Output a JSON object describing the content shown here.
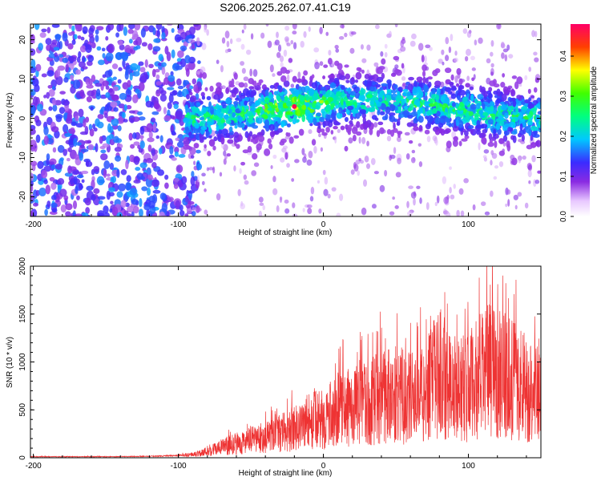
{
  "title": "S206.2025.262.07.41.C19",
  "colors": {
    "snr_line": "#ee3333",
    "axis": "#000000",
    "background": "#ffffff"
  },
  "chart_data": [
    {
      "type": "heatmap",
      "xlabel": "Height of straight line (km)",
      "ylabel": "Frequency (Hz)",
      "xlim": [
        -202,
        150
      ],
      "ylim": [
        -25,
        24
      ],
      "x_ticks": [
        {
          "value": -200,
          "label": "-200"
        },
        {
          "value": -100,
          "label": "-100"
        },
        {
          "value": 0,
          "label": "0"
        },
        {
          "value": 100,
          "label": "100"
        }
      ],
      "y_ticks": [
        {
          "value": 20,
          "label": "20"
        },
        {
          "value": 10,
          "label": "10"
        },
        {
          "value": 0,
          "label": "0"
        },
        {
          "value": -10,
          "label": "-10"
        },
        {
          "value": -20,
          "label": "-20"
        }
      ],
      "colorbar": {
        "label": "Normalized spectral amplitude",
        "range": [
          0,
          0.48
        ],
        "colormap": "rainbow-to-white (white, violet, blue, cyan, green, yellow, red, magenta)",
        "ticks": [
          {
            "value": 0.0,
            "label": "0.0"
          },
          {
            "value": 0.1,
            "label": "0.1"
          },
          {
            "value": 0.2,
            "label": "0.2"
          },
          {
            "value": 0.3,
            "label": "0.3"
          },
          {
            "value": 0.4,
            "label": "0.4"
          }
        ]
      },
      "description_features": {
        "noise_region_x": [
          -202,
          -95
        ],
        "signal_band_x": [
          -95,
          150
        ],
        "signal_band_center_hz": 2,
        "signal_band_halfwidth_hz": 7,
        "peak_location": {
          "x": -20,
          "y": 3,
          "value": 0.47
        }
      }
    },
    {
      "type": "line",
      "xlabel": "Height of straight line (km)",
      "ylabel": "SNR (10 * v/v)",
      "xlim": [
        -202,
        150
      ],
      "ylim": [
        0,
        2000
      ],
      "x_ticks": [
        {
          "value": -200,
          "label": "-200"
        },
        {
          "value": -100,
          "label": "-100"
        },
        {
          "value": 0,
          "label": "0"
        },
        {
          "value": 100,
          "label": "100"
        }
      ],
      "y_ticks": [
        {
          "value": 0,
          "label": "0"
        },
        {
          "value": 500,
          "label": "500"
        },
        {
          "value": 1000,
          "label": "1000"
        },
        {
          "value": 1500,
          "label": "1500"
        },
        {
          "value": 2000,
          "label": "2000"
        }
      ],
      "series": [
        {
          "envelope": {
            "x": [
              -202,
              -150,
              -120,
              -100,
              -90,
              -80,
              -70,
              -60,
              -50,
              -40,
              -30,
              -20,
              -10,
              0,
              10,
              20,
              30,
              40,
              50,
              60,
              70,
              80,
              90,
              100,
              110,
              120,
              130,
              140,
              150
            ],
            "y": [
              15,
              15,
              20,
              30,
              60,
              120,
              200,
              260,
              320,
              380,
              450,
              550,
              700,
              700,
              900,
              950,
              1000,
              1150,
              1200,
              1100,
              1200,
              1600,
              1300,
              1300,
              1550,
              1700,
              1450,
              1300,
              1300
            ]
          }
        }
      ]
    }
  ]
}
